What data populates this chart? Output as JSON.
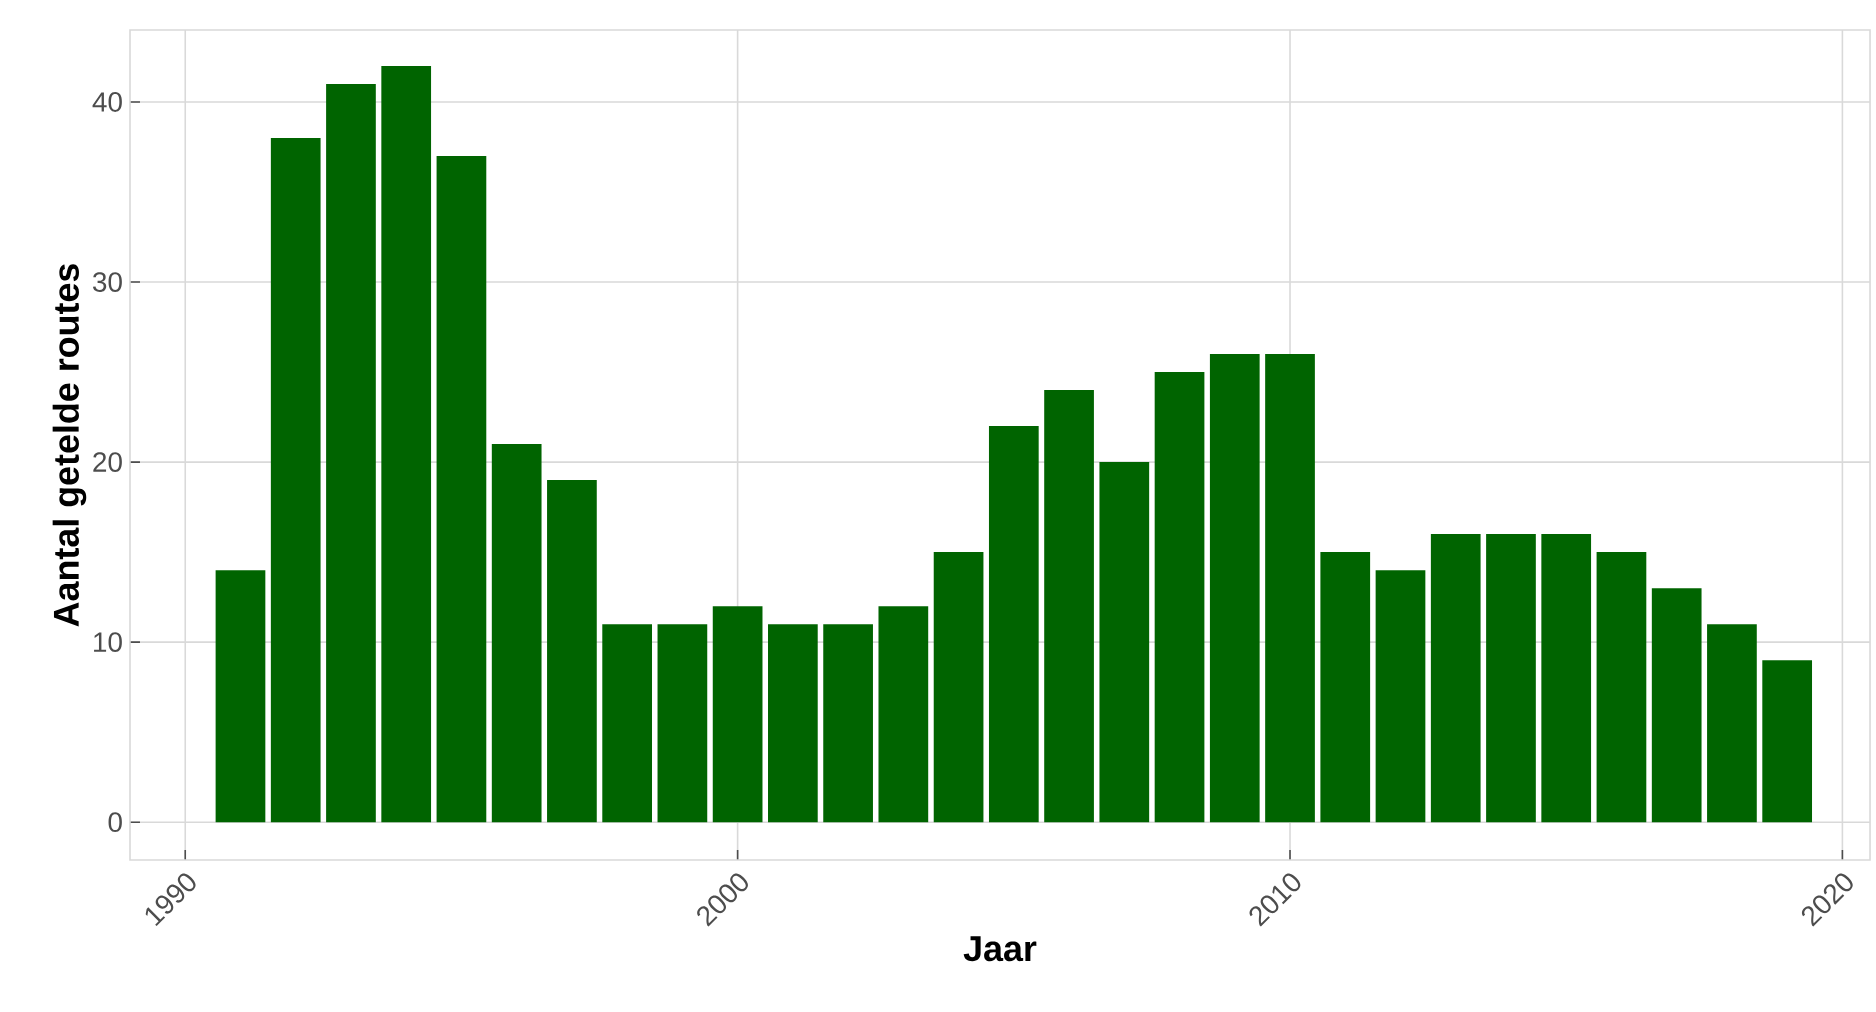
{
  "chart_data": {
    "type": "bar",
    "xlabel": "Jaar",
    "ylabel": "Aantal getelde routes",
    "x": [
      1991,
      1992,
      1993,
      1994,
      1995,
      1996,
      1997,
      1998,
      1999,
      2000,
      2001,
      2002,
      2003,
      2004,
      2005,
      2006,
      2007,
      2008,
      2009,
      2010,
      2011,
      2012,
      2013,
      2014,
      2015,
      2016,
      2017,
      2018,
      2019
    ],
    "values": [
      14,
      38,
      41,
      42,
      37,
      21,
      19,
      11,
      11,
      12,
      11,
      11,
      12,
      15,
      22,
      24,
      20,
      25,
      26,
      26,
      15,
      14,
      16,
      16,
      16,
      15,
      13,
      11,
      9
    ],
    "color": "#006400",
    "xlim": [
      1989,
      2020.5
    ],
    "ylim": [
      -2.1,
      44
    ],
    "xticks": [
      1990,
      2000,
      2010,
      2020
    ],
    "yticks": [
      0,
      10,
      20,
      30,
      40
    ],
    "grid": true
  }
}
